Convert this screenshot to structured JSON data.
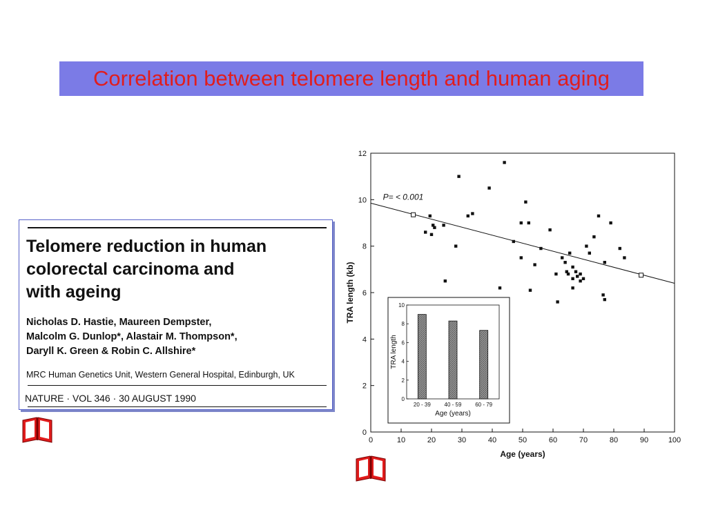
{
  "slide": {
    "title": "Correlation between telomere length and human aging",
    "colors": {
      "title_bg": "#7b7be6",
      "title_text": "#e11d1d",
      "book_icon": "#e01b1b"
    }
  },
  "paper": {
    "title_lines": [
      "Telomere reduction in human",
      "colorectal carcinoma and",
      "with ageing"
    ],
    "author_lines": [
      "Nicholas D. Hastie, Maureen Dempster,",
      "Malcolm G. Dunlop*, Alastair M. Thompson*,",
      "Daryll K. Green & Robin C. Allshire*"
    ],
    "affiliation": "MRC Human Genetics Unit, Western General Hospital, Edinburgh, UK",
    "citation": "NATURE · VOL 346 · 30 AUGUST 1990"
  },
  "icons": {
    "book": "open-book-icon"
  },
  "chart_data": [
    {
      "type": "scatter",
      "xlabel": "Age (years)",
      "ylabel": "TRA length (kb)",
      "xlim": [
        0,
        100
      ],
      "ylim": [
        0,
        12
      ],
      "xticks": [
        0,
        10,
        20,
        30,
        40,
        50,
        60,
        70,
        80,
        90,
        100
      ],
      "yticks": [
        0,
        2,
        4,
        6,
        8,
        10,
        12
      ],
      "annotation": "P= < 0.001",
      "regression_line": {
        "x": [
          0,
          100
        ],
        "y": [
          9.85,
          6.4
        ]
      },
      "regression_markers": [
        {
          "x": 14,
          "y": 9.35
        },
        {
          "x": 89,
          "y": 6.75
        }
      ],
      "points": [
        [
          18,
          8.6
        ],
        [
          19.5,
          9.3
        ],
        [
          20,
          8.5
        ],
        [
          21,
          8.8
        ],
        [
          20.5,
          8.9
        ],
        [
          24,
          8.9
        ],
        [
          24.5,
          6.5
        ],
        [
          28,
          8.0
        ],
        [
          29,
          11.0
        ],
        [
          32,
          9.3
        ],
        [
          33.5,
          9.4
        ],
        [
          39,
          10.5
        ],
        [
          42.5,
          6.2
        ],
        [
          44,
          11.6
        ],
        [
          47,
          8.2
        ],
        [
          49.5,
          7.5
        ],
        [
          49.5,
          9.0
        ],
        [
          51,
          9.9
        ],
        [
          52,
          9.0
        ],
        [
          52.5,
          6.1
        ],
        [
          54,
          7.2
        ],
        [
          56,
          7.9
        ],
        [
          59,
          8.7
        ],
        [
          61,
          6.8
        ],
        [
          61.5,
          5.6
        ],
        [
          63,
          7.5
        ],
        [
          64,
          7.3
        ],
        [
          64.5,
          6.9
        ],
        [
          65,
          6.8
        ],
        [
          65.5,
          7.7
        ],
        [
          66.5,
          7.1
        ],
        [
          66.5,
          6.6
        ],
        [
          66.5,
          6.2
        ],
        [
          67.5,
          6.9
        ],
        [
          68,
          6.7
        ],
        [
          69,
          6.8
        ],
        [
          69,
          6.5
        ],
        [
          70,
          6.6
        ],
        [
          71,
          8.0
        ],
        [
          72,
          7.7
        ],
        [
          73.5,
          8.4
        ],
        [
          75,
          9.3
        ],
        [
          76.5,
          5.9
        ],
        [
          77,
          7.3
        ],
        [
          77,
          5.7
        ],
        [
          79,
          9.0
        ],
        [
          82,
          7.9
        ],
        [
          83.5,
          7.5
        ]
      ]
    },
    {
      "type": "bar",
      "ylabel": "TRA length",
      "xlabel": "Age (years)",
      "categories": [
        "20 - 39",
        "40 - 59",
        "60 - 79"
      ],
      "values": [
        9.0,
        8.3,
        7.3
      ],
      "ylim": [
        0,
        10
      ],
      "yticks": [
        0,
        2,
        4,
        6,
        8,
        10
      ]
    }
  ]
}
